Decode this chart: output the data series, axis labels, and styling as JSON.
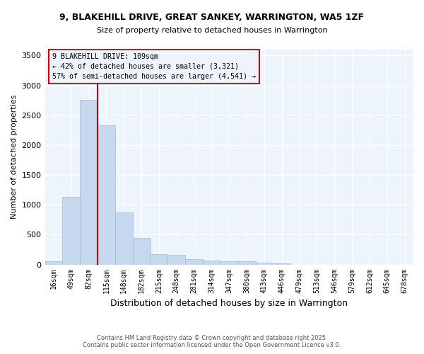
{
  "title1": "9, BLAKEHILL DRIVE, GREAT SANKEY, WARRINGTON, WA5 1ZF",
  "title2": "Size of property relative to detached houses in Warrington",
  "xlabel": "Distribution of detached houses by size in Warrington",
  "ylabel": "Number of detached properties",
  "footer1": "Contains HM Land Registry data © Crown copyright and database right 2025.",
  "footer2": "Contains public sector information licensed under the Open Government Licence v3.0.",
  "categories": [
    "16sqm",
    "49sqm",
    "82sqm",
    "115sqm",
    "148sqm",
    "182sqm",
    "215sqm",
    "248sqm",
    "281sqm",
    "314sqm",
    "347sqm",
    "380sqm",
    "413sqm",
    "446sqm",
    "479sqm",
    "513sqm",
    "546sqm",
    "579sqm",
    "612sqm",
    "645sqm",
    "678sqm"
  ],
  "values": [
    50,
    1130,
    2760,
    2330,
    870,
    440,
    170,
    160,
    90,
    65,
    50,
    50,
    30,
    20,
    0,
    0,
    0,
    0,
    0,
    0,
    0
  ],
  "bar_color": "#C5D8EE",
  "bar_edge_color": "#A0BCD8",
  "property_line_x": 2.5,
  "property_label": "9 BLAKEHILL DRIVE: 109sqm",
  "annotation_line1": "← 42% of detached houses are smaller (3,321)",
  "annotation_line2": "57% of semi-detached houses are larger (4,541) →",
  "annotation_box_color": "#CC0000",
  "ylim": [
    0,
    3600
  ],
  "yticks": [
    0,
    500,
    1000,
    1500,
    2000,
    2500,
    3000,
    3500
  ],
  "bg_color": "#EEF4FC",
  "plot_bg_color": "#EEF4FC",
  "grid_color": "#FFFFFF",
  "line_color": "#CC0000",
  "fig_bg_color": "#FFFFFF"
}
